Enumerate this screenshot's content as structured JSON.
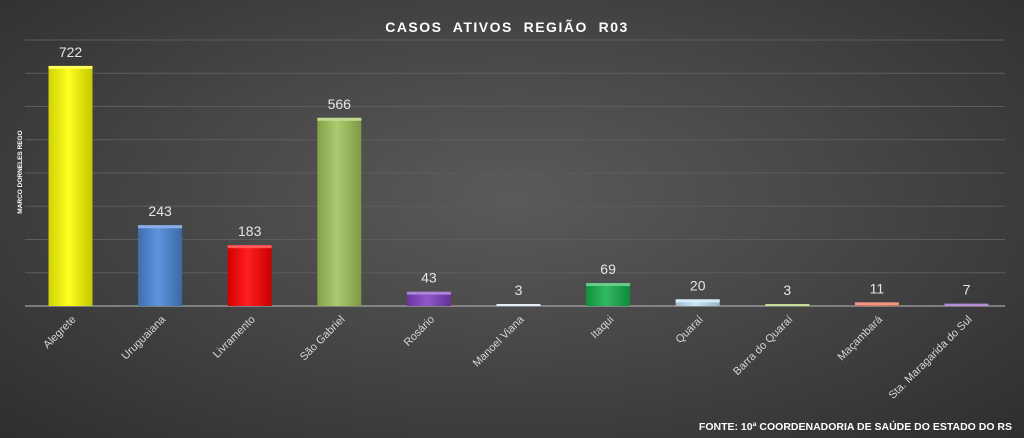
{
  "chart_data": {
    "type": "bar",
    "title": "CASOS  ATIVOS  REGIÃO  R03",
    "ylabel": "MARCO DORNELES REGO",
    "footer": "FONTE: 10ª COORDENADORIA DE SAÚDE DO ESTADO DO RS",
    "categories": [
      "Alegrete",
      "Uruguaiana",
      "Livramento",
      "São Gabriel",
      "Rosário",
      "Manoel Viana",
      "Itaqui",
      "Quaraí",
      "Barra do Quaraí",
      "Maçambará",
      "Sta. Maragarida do Sul"
    ],
    "values": [
      722,
      243,
      183,
      566,
      43,
      3,
      69,
      20,
      3,
      11,
      7
    ],
    "colors": [
      "#ffff00",
      "#4a86d6",
      "#ff0000",
      "#9fc45a",
      "#8040c0",
      "#d9e6f2",
      "#14b04a",
      "#bfe4f5",
      "#a8c860",
      "#e06040",
      "#8a4fc0"
    ],
    "ylim": [
      0,
      800
    ],
    "grid": true,
    "legend": "none"
  }
}
